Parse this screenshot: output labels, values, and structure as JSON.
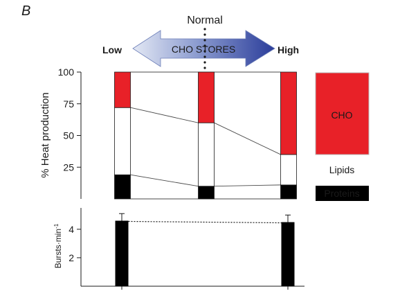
{
  "panel_label": "B",
  "arrow": {
    "normal_label": "Normal",
    "low_label": "Low",
    "high_label": "High",
    "center_label": "CHO STORES"
  },
  "chart_data": [
    {
      "type": "bar",
      "stacked": true,
      "categories": [
        "Low",
        "Normal",
        "High"
      ],
      "ylabel": "% Heat production",
      "ylim": [
        0,
        100
      ],
      "yticks": [
        25,
        50,
        75,
        100
      ],
      "series": [
        {
          "name": "Proteins",
          "values": [
            19,
            10,
            11
          ],
          "color": "#000000"
        },
        {
          "name": "Lipids",
          "values": [
            53,
            50,
            24
          ],
          "color": "#ffffff"
        },
        {
          "name": "CHO",
          "values": [
            28,
            40,
            65
          ],
          "color": "#e82128"
        }
      ],
      "legend_position": "right"
    },
    {
      "type": "bar",
      "categories": [
        "Low",
        "High"
      ],
      "values": [
        4.6,
        4.5
      ],
      "errors": [
        0.5,
        0.5
      ],
      "ylabel": "Bursts·min",
      "ylabel_superscript": "-1",
      "ylim": [
        0,
        5.5
      ],
      "yticks": [
        2,
        4
      ],
      "color": "#000000"
    }
  ]
}
